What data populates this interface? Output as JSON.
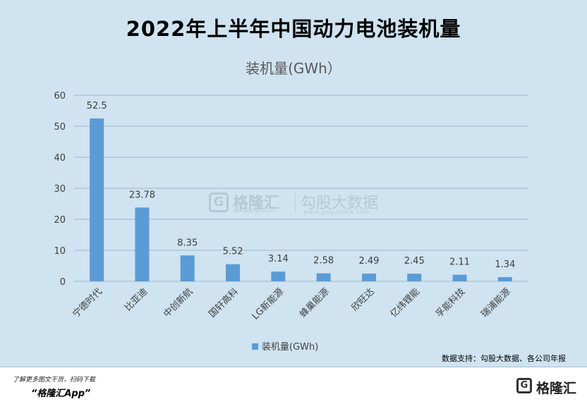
{
  "header": {
    "title": "2022年上半年中国动力电池装机量"
  },
  "chart_data": {
    "type": "bar",
    "title": "装机量(GWh）",
    "categories": [
      "宁德时代",
      "比亚迪",
      "中创新航",
      "国轩高科",
      "LG新能源",
      "蜂巢能源",
      "欣旺达",
      "亿纬锂能",
      "孚能科技",
      "瑞浦能源"
    ],
    "series": [
      {
        "name": "装机量(GWh)",
        "values": [
          52.5,
          23.78,
          8.35,
          5.52,
          3.14,
          2.58,
          2.49,
          2.45,
          2.11,
          1.34
        ]
      }
    ],
    "value_labels": [
      "52.5",
      "23.78",
      "8.35",
      "5.52",
      "3.14",
      "2.58",
      "2.49",
      "2.45",
      "2.11",
      "1.34"
    ],
    "yticks": [
      "0",
      "10",
      "20",
      "30",
      "40",
      "50",
      "60"
    ],
    "ylim": [
      0,
      60
    ],
    "grid": true,
    "legend_position": "bottom",
    "bar_color": "#5b9bd5"
  },
  "watermark": {
    "logo_glyph": "G",
    "brand": "格隆汇",
    "brand_sub": "www.gelonghui.com",
    "gogu": "勾股大数据",
    "gogu_sub": "www.gogudata.com"
  },
  "source": {
    "text": "数据支持：勾股大数据、各公司年报"
  },
  "footer": {
    "line1": "了解更多图文干货，扫码下载",
    "line2": "“格隆汇App”",
    "logo_glyph": "G",
    "brand": "格隆汇"
  }
}
